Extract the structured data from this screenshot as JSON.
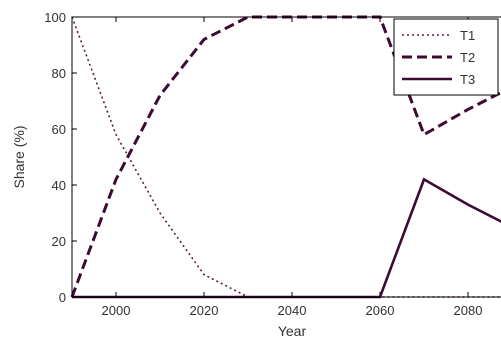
{
  "chart_data": {
    "type": "line",
    "xlabel": "Year",
    "ylabel": "Share (%)",
    "xlim": [
      1990,
      2090
    ],
    "ylim": [
      0,
      100
    ],
    "x_ticks": [
      2000,
      2020,
      2040,
      2060,
      2080
    ],
    "y_ticks": [
      0,
      20,
      40,
      60,
      80,
      100
    ],
    "grid": false,
    "legend_position": "top-right",
    "x": [
      1990,
      2000,
      2010,
      2020,
      2030,
      2040,
      2050,
      2060,
      2070,
      2080,
      2090
    ],
    "series": [
      {
        "name": "T1",
        "style": "dotted",
        "color": "#5a1e4a",
        "values": [
          100,
          58,
          30,
          8,
          0,
          0,
          0,
          0,
          0,
          0,
          0
        ]
      },
      {
        "name": "T2",
        "style": "dashed",
        "color": "#3d0a33",
        "values": [
          0,
          42,
          72,
          92,
          100,
          100,
          100,
          100,
          58,
          67,
          75
        ]
      },
      {
        "name": "T3",
        "style": "solid",
        "color": "#3d0a33",
        "values": [
          0,
          0,
          0,
          0,
          0,
          0,
          0,
          0,
          42,
          33,
          25
        ]
      }
    ]
  }
}
